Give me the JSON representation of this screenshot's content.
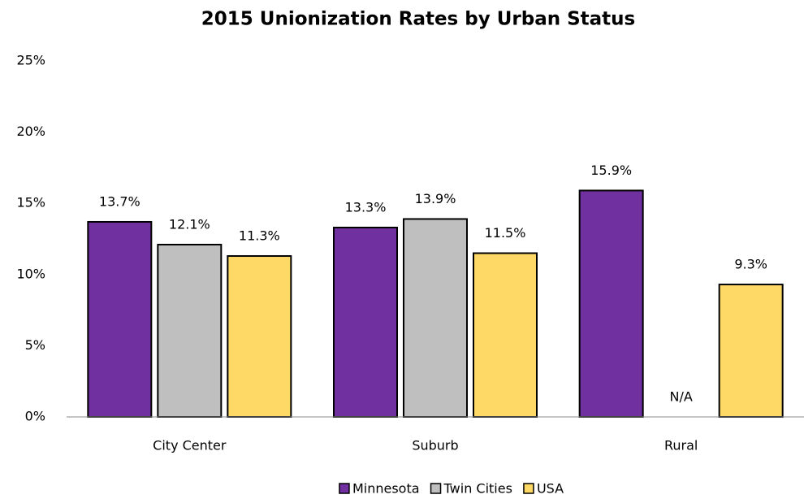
{
  "chart_data": {
    "type": "bar",
    "title": "2015 Unionization Rates by Urban Status",
    "categories": [
      "City Center",
      "Suburb",
      "Rural"
    ],
    "series": [
      {
        "name": "Minnesota",
        "color": "#7030a0",
        "values": [
          13.7,
          13.3,
          15.9
        ],
        "value_labels": [
          "13.7%",
          "13.3%",
          "15.9%"
        ]
      },
      {
        "name": "Twin Cities",
        "color": "#bfbfbf",
        "values": [
          12.1,
          13.9,
          null
        ],
        "value_labels": [
          "12.1%",
          "13.9%",
          "N/A"
        ]
      },
      {
        "name": "USA",
        "color": "#ffd966",
        "values": [
          11.3,
          11.5,
          9.3
        ],
        "value_labels": [
          "11.3%",
          "11.5%",
          "9.3%"
        ]
      }
    ],
    "ylim": [
      0,
      25
    ],
    "yticks": [
      {
        "value": 0,
        "label": "0%"
      },
      {
        "value": 5,
        "label": "5%"
      },
      {
        "value": 10,
        "label": "10%"
      },
      {
        "value": 15,
        "label": "15%"
      },
      {
        "value": 20,
        "label": "20%"
      },
      {
        "value": 25,
        "label": "25%"
      }
    ],
    "grid": false,
    "legend": "bottom"
  }
}
